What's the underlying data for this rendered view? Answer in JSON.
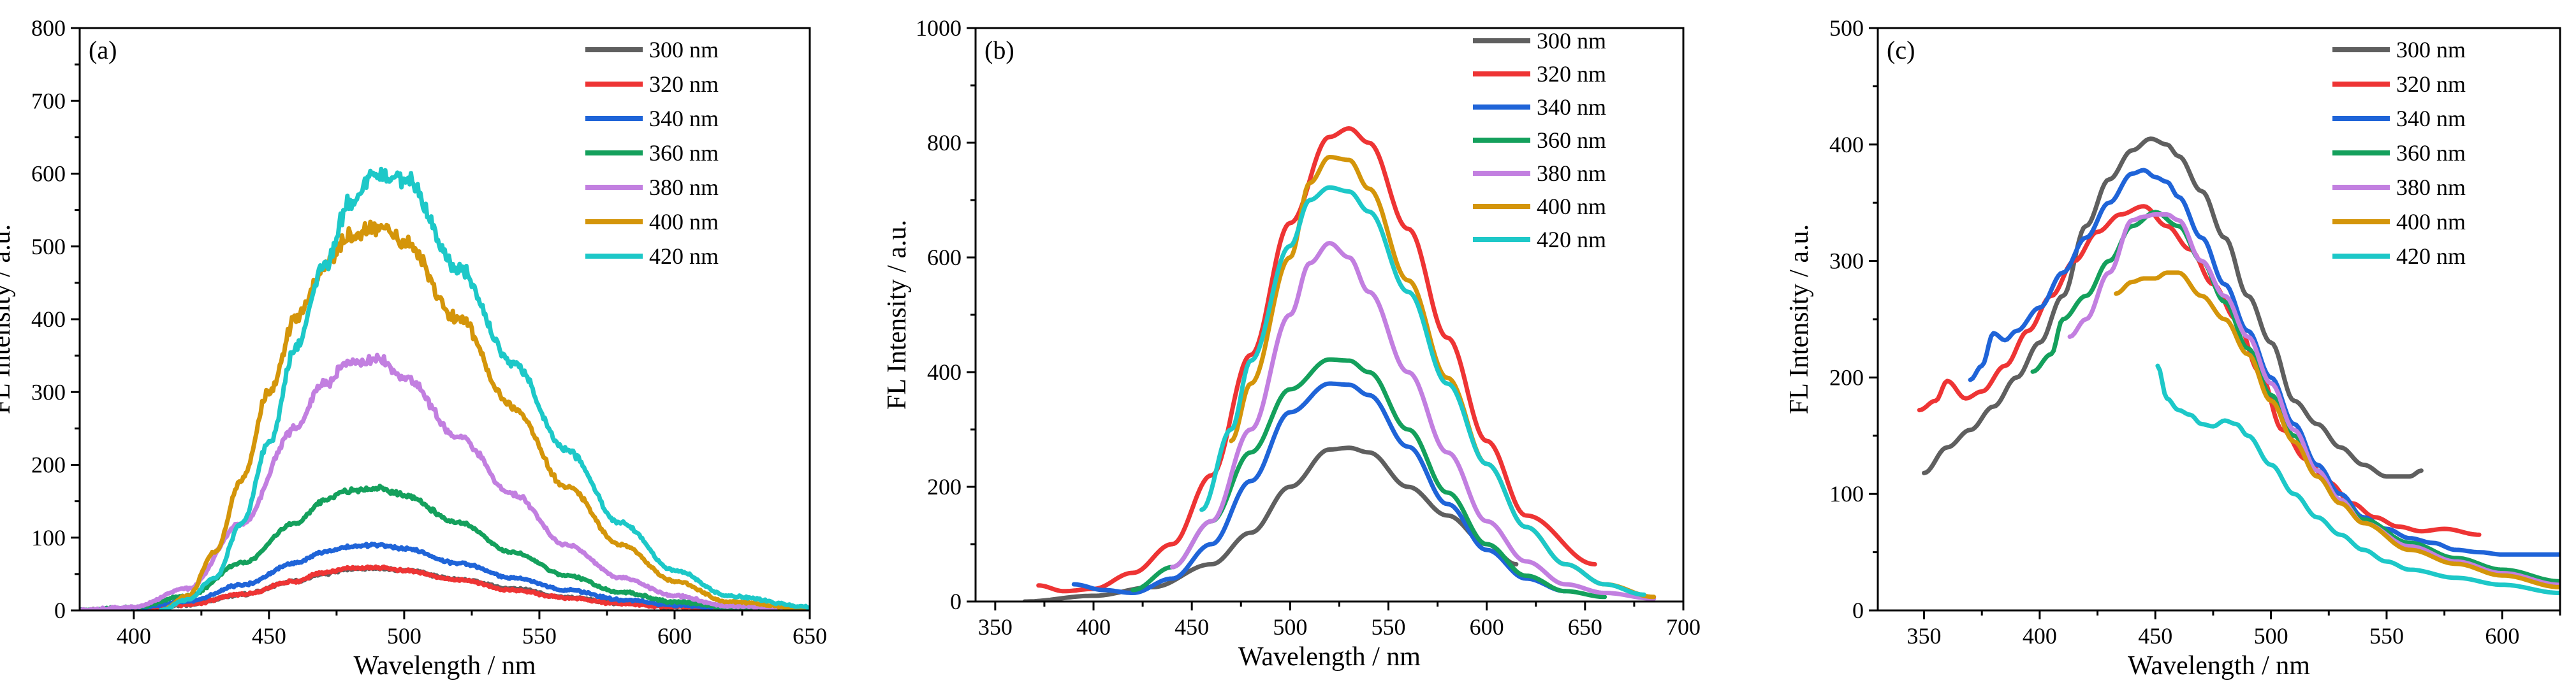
{
  "colors": {
    "300 nm": "#5f5f5f",
    "320 nm": "#ee3434",
    "340 nm": "#1f64d8",
    "360 nm": "#14a05c",
    "380 nm": "#c27fe0",
    "400 nm": "#d4950a",
    "420 nm": "#1dc8c8"
  },
  "chart_data": [
    {
      "type": "line",
      "panel_label": "(a)",
      "xlabel": "Wavelength / nm",
      "ylabel": "FL Intensity / a.u.",
      "xlim": [
        380,
        650
      ],
      "ylim": [
        0,
        800
      ],
      "xticks": [
        400,
        450,
        500,
        550,
        600,
        650
      ],
      "yticks": [
        0,
        100,
        200,
        300,
        400,
        500,
        600,
        700,
        800
      ],
      "legend": [
        "300 nm",
        "320 nm",
        "340 nm",
        "360 nm",
        "380 nm",
        "400 nm",
        "420 nm"
      ],
      "noisy": true,
      "series": [
        {
          "name": "300 nm",
          "x": [
            380,
            400,
            420,
            440,
            460,
            470,
            480,
            490,
            500,
            520,
            540,
            560,
            580,
            600,
            620,
            650
          ],
          "y": [
            0,
            2,
            8,
            22,
            40,
            50,
            57,
            58,
            55,
            43,
            30,
            18,
            10,
            5,
            2,
            0
          ]
        },
        {
          "name": "320 nm",
          "x": [
            380,
            400,
            420,
            440,
            460,
            470,
            480,
            490,
            500,
            520,
            540,
            560,
            580,
            600,
            620,
            650
          ],
          "y": [
            0,
            2,
            8,
            22,
            40,
            52,
            58,
            59,
            55,
            42,
            28,
            17,
            9,
            5,
            2,
            0
          ]
        },
        {
          "name": "340 nm",
          "x": [
            380,
            400,
            420,
            440,
            460,
            470,
            480,
            490,
            500,
            520,
            540,
            560,
            580,
            600,
            620,
            650
          ],
          "y": [
            0,
            3,
            12,
            35,
            65,
            80,
            88,
            90,
            85,
            65,
            45,
            28,
            15,
            7,
            3,
            0
          ]
        },
        {
          "name": "360 nm",
          "x": [
            380,
            400,
            420,
            440,
            460,
            470,
            480,
            490,
            500,
            520,
            540,
            560,
            580,
            600,
            620,
            650
          ],
          "y": [
            0,
            4,
            20,
            65,
            120,
            150,
            165,
            168,
            158,
            120,
            80,
            48,
            25,
            12,
            4,
            0
          ]
        },
        {
          "name": "380 nm",
          "x": [
            380,
            400,
            420,
            440,
            460,
            470,
            480,
            490,
            500,
            520,
            540,
            560,
            580,
            600,
            620,
            650
          ],
          "y": [
            0,
            5,
            30,
            120,
            250,
            310,
            340,
            345,
            320,
            240,
            160,
            90,
            45,
            20,
            6,
            0
          ]
        },
        {
          "name": "400 nm",
          "x": [
            410,
            420,
            430,
            440,
            450,
            460,
            470,
            480,
            490,
            500,
            520,
            540,
            560,
            580,
            600,
            620,
            650
          ],
          "y": [
            0,
            20,
            80,
            180,
            300,
            400,
            470,
            515,
            525,
            505,
            400,
            280,
            170,
            90,
            40,
            12,
            2
          ]
        },
        {
          "name": "420 nm",
          "x": [
            410,
            420,
            430,
            440,
            450,
            460,
            470,
            480,
            490,
            500,
            520,
            540,
            560,
            580,
            600,
            620,
            650
          ],
          "y": [
            0,
            15,
            45,
            120,
            230,
            360,
            470,
            560,
            600,
            595,
            470,
            340,
            220,
            120,
            55,
            20,
            5
          ]
        }
      ]
    },
    {
      "type": "line",
      "panel_label": "(b)",
      "xlabel": "Wavelength / nm",
      "ylabel": "FL Intensity / a.u.",
      "xlim": [
        340,
        700
      ],
      "ylim": [
        0,
        1000
      ],
      "xticks": [
        350,
        400,
        450,
        500,
        550,
        600,
        650,
        700
      ],
      "yticks": [
        0,
        200,
        400,
        600,
        800,
        1000
      ],
      "legend": [
        "300 nm",
        "320 nm",
        "340 nm",
        "360 nm",
        "380 nm",
        "400 nm",
        "420 nm"
      ],
      "noisy": false,
      "series": [
        {
          "name": "300 nm",
          "x": [
            365,
            400,
            430,
            460,
            480,
            500,
            520,
            530,
            540,
            560,
            580,
            600,
            615
          ],
          "y": [
            0,
            10,
            25,
            65,
            120,
            200,
            265,
            268,
            260,
            200,
            150,
            100,
            65
          ]
        },
        {
          "name": "320 nm",
          "x": [
            372,
            385,
            400,
            420,
            440,
            460,
            480,
            500,
            520,
            530,
            540,
            560,
            580,
            600,
            620,
            655
          ],
          "y": [
            28,
            18,
            22,
            50,
            100,
            220,
            430,
            660,
            810,
            825,
            800,
            650,
            460,
            280,
            150,
            65
          ]
        },
        {
          "name": "340 nm",
          "x": [
            390,
            405,
            420,
            440,
            460,
            480,
            500,
            520,
            530,
            540,
            560,
            580,
            600,
            620,
            640
          ],
          "y": [
            30,
            20,
            15,
            40,
            100,
            210,
            330,
            380,
            378,
            360,
            270,
            170,
            90,
            40,
            18
          ]
        },
        {
          "name": "360 nm",
          "x": [
            420,
            440,
            460,
            480,
            500,
            520,
            530,
            540,
            560,
            580,
            600,
            620,
            640,
            660
          ],
          "y": [
            20,
            60,
            140,
            260,
            370,
            422,
            420,
            400,
            300,
            190,
            100,
            45,
            18,
            8
          ]
        },
        {
          "name": "380 nm",
          "x": [
            440,
            460,
            480,
            500,
            510,
            520,
            530,
            540,
            560,
            580,
            600,
            620,
            640,
            660,
            685
          ],
          "y": [
            60,
            140,
            300,
            500,
            590,
            625,
            600,
            540,
            400,
            260,
            140,
            70,
            30,
            15,
            5
          ]
        },
        {
          "name": "400 nm",
          "x": [
            470,
            480,
            500,
            510,
            520,
            530,
            540,
            560,
            580,
            600,
            620,
            640,
            660,
            685
          ],
          "y": [
            280,
            380,
            600,
            730,
            775,
            770,
            720,
            560,
            390,
            240,
            130,
            65,
            30,
            8
          ]
        },
        {
          "name": "420 nm",
          "x": [
            455,
            470,
            480,
            500,
            510,
            520,
            530,
            540,
            560,
            580,
            600,
            620,
            640,
            660,
            680
          ],
          "y": [
            160,
            300,
            420,
            620,
            700,
            722,
            715,
            680,
            540,
            380,
            240,
            130,
            65,
            30,
            12
          ]
        }
      ]
    },
    {
      "type": "line",
      "panel_label": "(c)",
      "xlabel": "Wavelength / nm",
      "ylabel": "FL Intensity / a.u.",
      "xlim": [
        330,
        625
      ],
      "ylim": [
        0,
        500
      ],
      "xticks": [
        350,
        400,
        450,
        500,
        550,
        600
      ],
      "yticks": [
        0,
        100,
        200,
        300,
        400,
        500
      ],
      "legend": [
        "300 nm",
        "320 nm",
        "340 nm",
        "360 nm",
        "380 nm",
        "400 nm",
        "420 nm"
      ],
      "noisy": false,
      "series": [
        {
          "name": "300 nm",
          "x": [
            350,
            360,
            370,
            380,
            390,
            400,
            410,
            420,
            430,
            440,
            448,
            455,
            460,
            470,
            480,
            490,
            500,
            510,
            520,
            530,
            540,
            550,
            560,
            565
          ],
          "y": [
            118,
            140,
            155,
            175,
            200,
            230,
            270,
            330,
            370,
            395,
            405,
            400,
            390,
            360,
            320,
            270,
            230,
            180,
            160,
            140,
            125,
            115,
            115,
            120
          ]
        },
        {
          "name": "320 nm",
          "x": [
            348,
            355,
            360,
            368,
            375,
            385,
            395,
            405,
            415,
            425,
            435,
            445,
            455,
            465,
            475,
            485,
            495,
            505,
            515,
            525,
            535,
            545,
            555,
            565,
            575,
            590
          ],
          "y": [
            172,
            180,
            197,
            182,
            188,
            210,
            240,
            270,
            300,
            325,
            340,
            347,
            330,
            310,
            280,
            250,
            205,
            155,
            130,
            110,
            92,
            80,
            72,
            68,
            70,
            65
          ]
        },
        {
          "name": "340 nm",
          "x": [
            370,
            375,
            380,
            385,
            390,
            400,
            410,
            420,
            430,
            440,
            445,
            450,
            455,
            460,
            470,
            480,
            490,
            500,
            510,
            520,
            530,
            540,
            550,
            560,
            570,
            580,
            590,
            600,
            610,
            625
          ],
          "y": [
            198,
            210,
            238,
            232,
            240,
            260,
            290,
            320,
            350,
            375,
            378,
            372,
            368,
            355,
            320,
            280,
            240,
            200,
            160,
            125,
            100,
            80,
            70,
            62,
            58,
            52,
            50,
            48,
            48,
            48
          ]
        },
        {
          "name": "360 nm",
          "x": [
            397,
            405,
            410,
            420,
            430,
            440,
            450,
            460,
            470,
            480,
            490,
            500,
            510,
            520,
            530,
            540,
            560,
            580,
            600,
            625
          ],
          "y": [
            205,
            220,
            250,
            270,
            300,
            330,
            342,
            330,
            300,
            265,
            225,
            185,
            150,
            120,
            95,
            78,
            58,
            45,
            35,
            25
          ]
        },
        {
          "name": "380 nm",
          "x": [
            413,
            420,
            430,
            440,
            445,
            450,
            455,
            460,
            470,
            480,
            490,
            500,
            510,
            520,
            530,
            540,
            560,
            580,
            600,
            625
          ],
          "y": [
            235,
            250,
            290,
            335,
            338,
            340,
            340,
            335,
            300,
            270,
            235,
            195,
            155,
            120,
            95,
            75,
            55,
            42,
            32,
            22
          ]
        },
        {
          "name": "400 nm",
          "x": [
            433,
            440,
            445,
            450,
            455,
            460,
            470,
            480,
            490,
            500,
            510,
            520,
            530,
            540,
            560,
            580,
            600,
            625
          ],
          "y": [
            272,
            282,
            285,
            285,
            290,
            290,
            270,
            250,
            220,
            180,
            145,
            115,
            92,
            75,
            52,
            40,
            30,
            20
          ]
        },
        {
          "name": "420 nm",
          "x": [
            451,
            455,
            460,
            465,
            470,
            475,
            480,
            485,
            490,
            500,
            510,
            520,
            530,
            540,
            550,
            560,
            580,
            600,
            625
          ],
          "y": [
            210,
            182,
            172,
            168,
            160,
            158,
            163,
            160,
            150,
            125,
            100,
            80,
            65,
            52,
            42,
            35,
            28,
            22,
            15
          ]
        }
      ]
    }
  ]
}
